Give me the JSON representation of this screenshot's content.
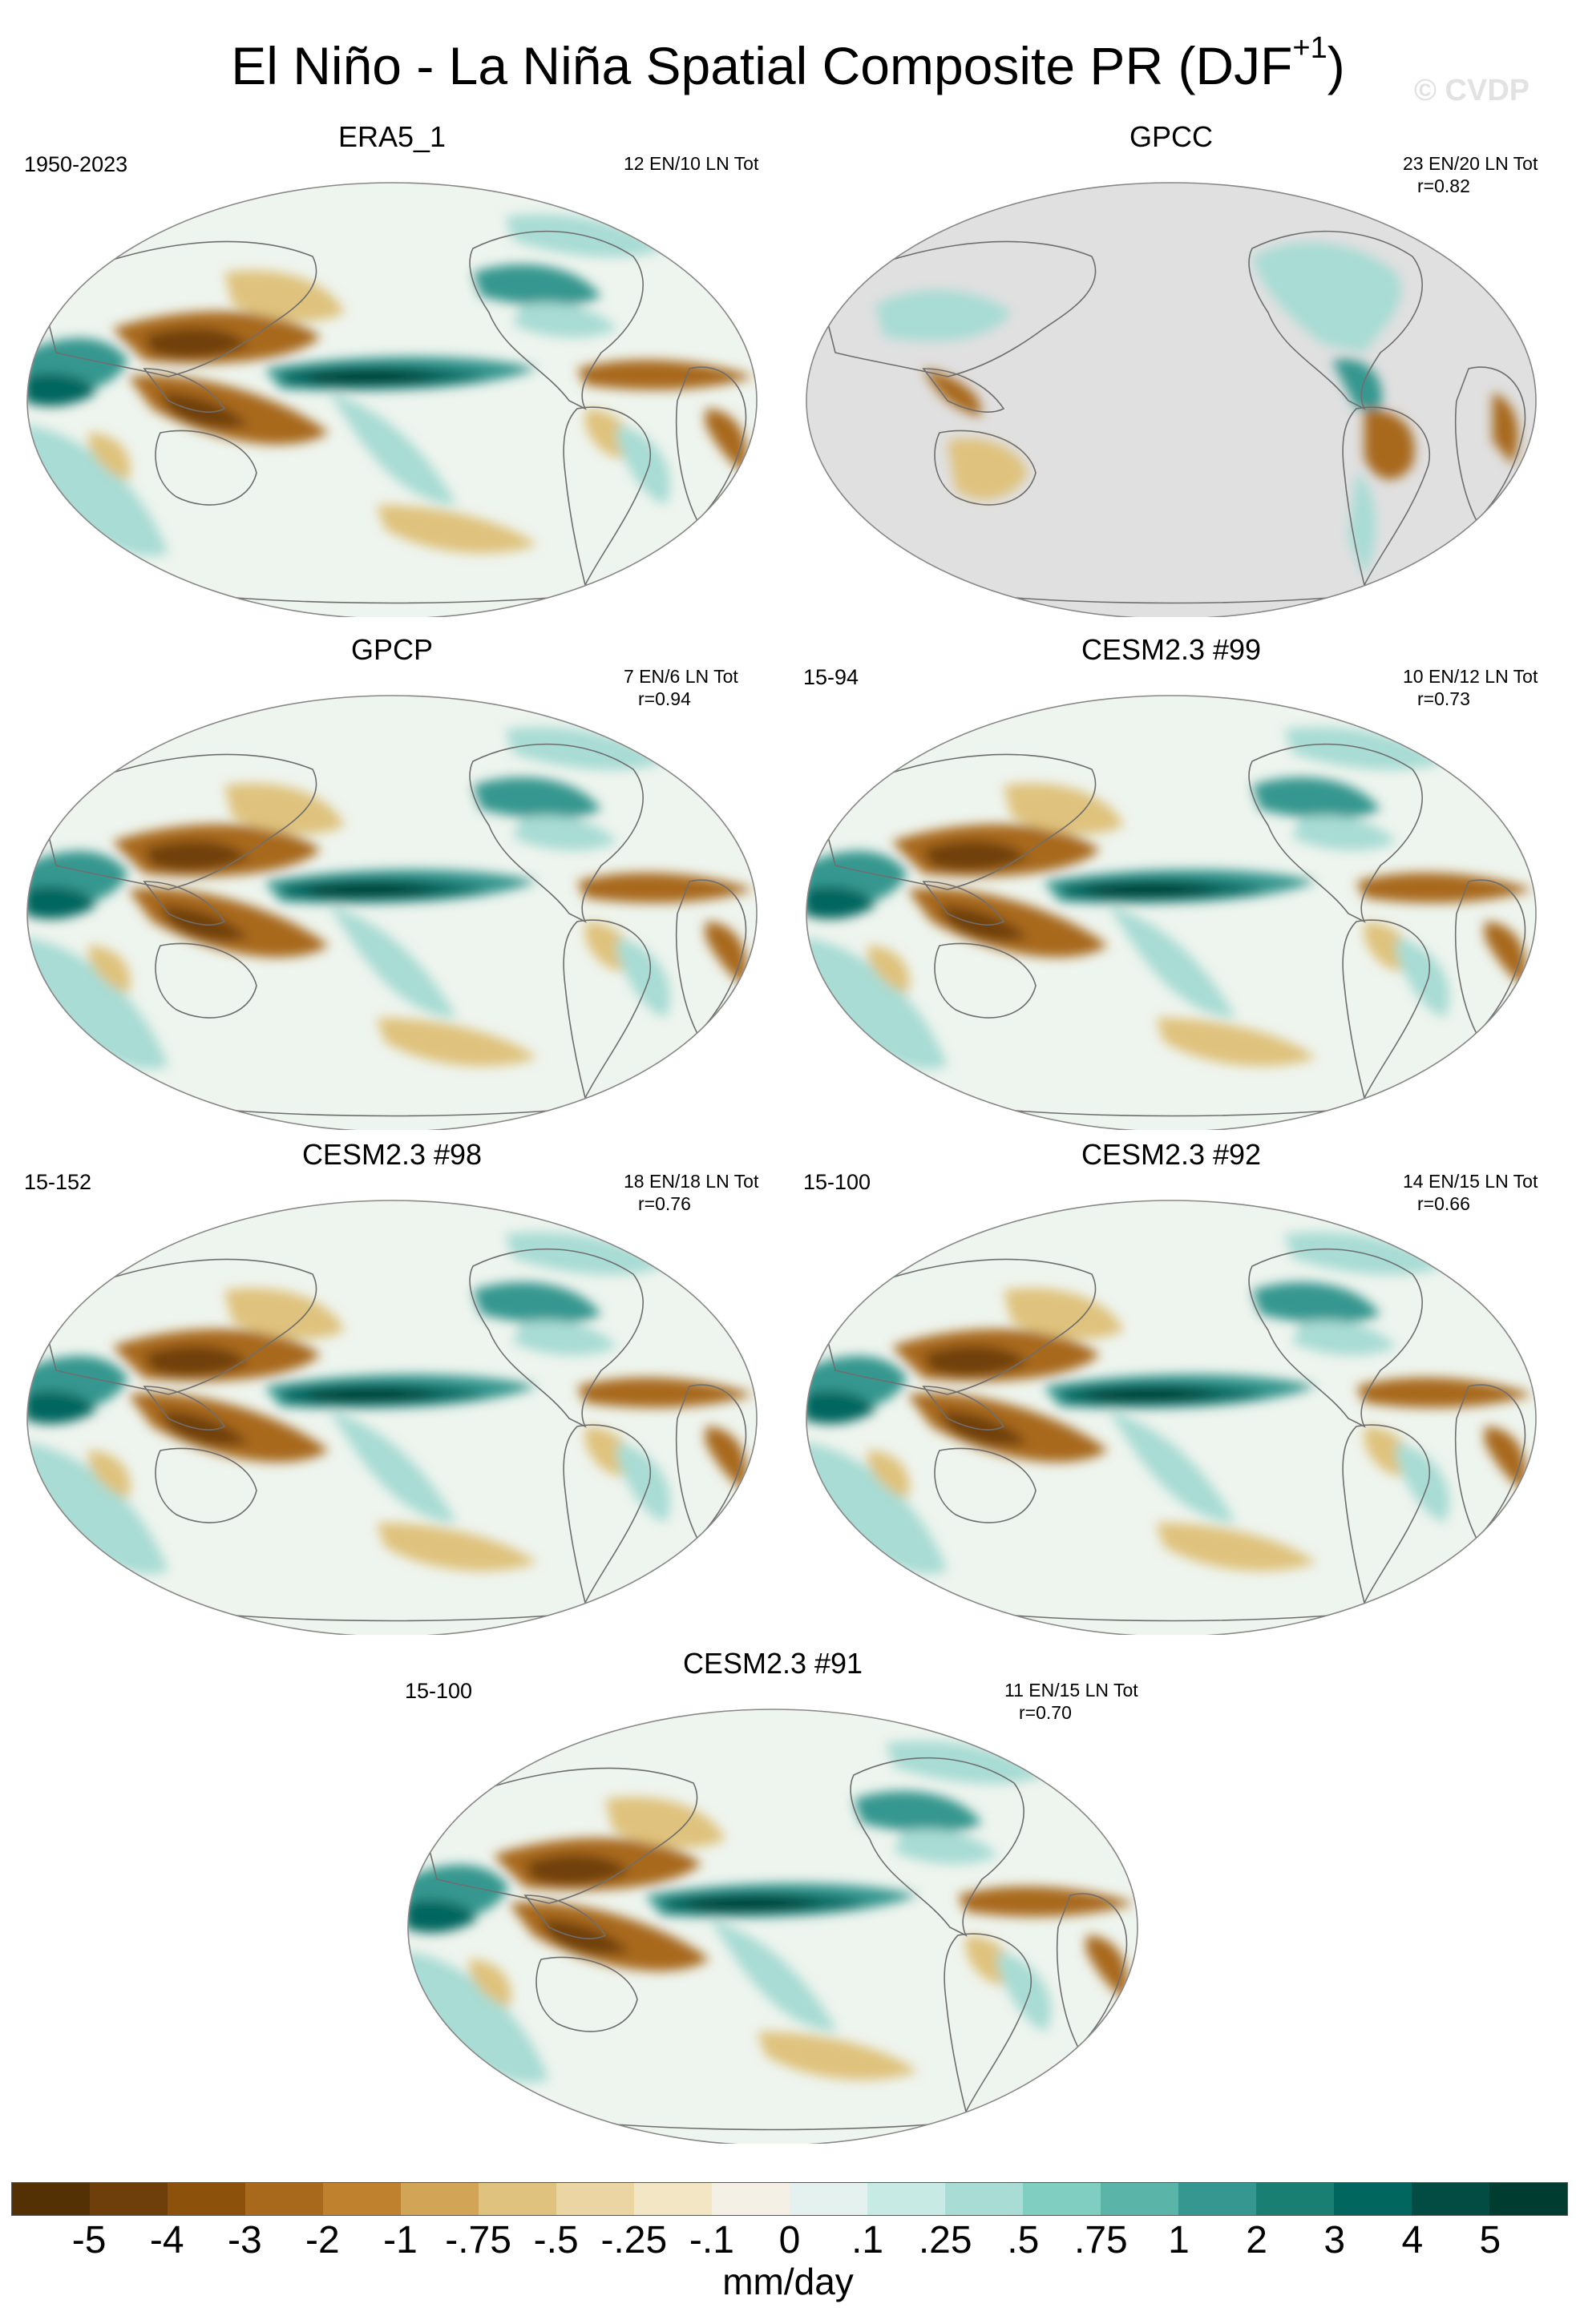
{
  "figure": {
    "title": "El Niño - La Niña Spatial Composite PR (DJF",
    "title_superscript": "+1",
    "title_close": ")",
    "watermark": "© CVDP"
  },
  "panels": [
    {
      "title": "ERA5_1",
      "left_note": "1950-2023",
      "count": "12 EN/10 LN Tot",
      "corr": "",
      "land_only": false
    },
    {
      "title": "GPCC",
      "left_note": "",
      "count": "23 EN/20 LN Tot",
      "corr": "r=0.82",
      "land_only": true
    },
    {
      "title": "GPCP",
      "left_note": "",
      "count": "7 EN/6 LN Tot",
      "corr": "r=0.94",
      "land_only": false
    },
    {
      "title": "CESM2.3 #99",
      "left_note": "15-94",
      "count": "10 EN/12 LN Tot",
      "corr": "r=0.73",
      "land_only": false
    },
    {
      "title": "CESM2.3 #98",
      "left_note": "15-152",
      "count": "18 EN/18 LN Tot",
      "corr": "r=0.76",
      "land_only": false
    },
    {
      "title": "CESM2.3 #92",
      "left_note": "15-100",
      "count": "14 EN/15 LN Tot",
      "corr": "r=0.66",
      "land_only": false
    },
    {
      "title": "CESM2.3 #91",
      "left_note": "15-100",
      "count": "11 EN/15 LN Tot",
      "corr": "r=0.70",
      "land_only": false
    }
  ],
  "colorbar": {
    "units": "mm/day",
    "tick_labels": [
      "-5",
      "-4",
      "-3",
      "-2",
      "-1",
      "-.75",
      "-.5",
      "-.25",
      "-.1",
      "0",
      ".1",
      ".25",
      ".5",
      ".75",
      "1",
      "2",
      "3",
      "4",
      "5"
    ],
    "colors": [
      "#543005",
      "#6f3f0b",
      "#8c510a",
      "#a8691c",
      "#bf812d",
      "#d2a456",
      "#dfc27d",
      "#ebd5a2",
      "#f3e6c4",
      "#f5f0e6",
      "#e4f1ef",
      "#c7eae5",
      "#a8dcd4",
      "#80cdc1",
      "#5ab4a8",
      "#35978f",
      "#1a7f73",
      "#01665e",
      "#024c44",
      "#003c30"
    ]
  },
  "anomaly_colors": {
    "dry_strong": "#6f3f0b",
    "dry": "#a8691c",
    "dry_light": "#dfc27d",
    "wet_light": "#a8dcd4",
    "wet": "#35978f",
    "wet_strong": "#01665e",
    "wet_extreme": "#003c30",
    "ocean_base": "#eef4ee",
    "land_mask": "#e0e0e0"
  }
}
